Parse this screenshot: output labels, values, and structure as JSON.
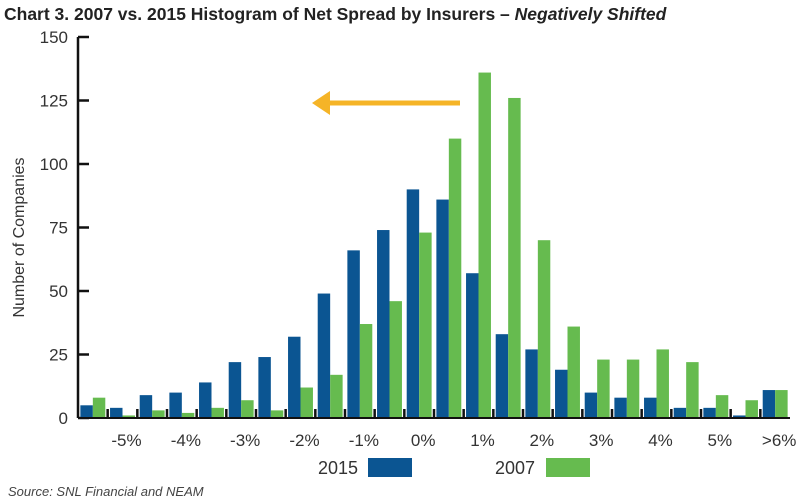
{
  "chart_data": {
    "type": "bar",
    "title": "Chart 3. 2007 vs. 2015 Histogram of Net Spread by Insurers – ",
    "title_italic": "Negatively Shifted",
    "ylabel": "Number of Companies",
    "xlabel": "",
    "ylim": [
      0,
      150
    ],
    "yticks": [
      0,
      25,
      50,
      75,
      100,
      125,
      150
    ],
    "xtick_labels": [
      "-5%",
      "-4%",
      "-3%",
      "-2%",
      "-1%",
      "0%",
      "1%",
      "2%",
      "3%",
      "4%",
      "5%",
      ">6%"
    ],
    "bins": 24,
    "series": [
      {
        "name": "2015",
        "color": "#0b5592",
        "values": [
          5,
          4,
          9,
          10,
          14,
          22,
          24,
          32,
          49,
          66,
          74,
          90,
          86,
          57,
          33,
          27,
          19,
          10,
          8,
          8,
          4,
          4,
          1,
          11
        ]
      },
      {
        "name": "2007",
        "color": "#66bb4f",
        "values": [
          8,
          1,
          3,
          2,
          4,
          7,
          3,
          12,
          17,
          37,
          46,
          73,
          110,
          136,
          126,
          70,
          36,
          23,
          23,
          27,
          22,
          9,
          7,
          11
        ]
      }
    ],
    "annotation": {
      "type": "arrow",
      "direction": "left",
      "color": "#f5b427"
    },
    "legend": "bottom-center",
    "grid": false
  },
  "source": "Source: SNL Financial and NEAM"
}
